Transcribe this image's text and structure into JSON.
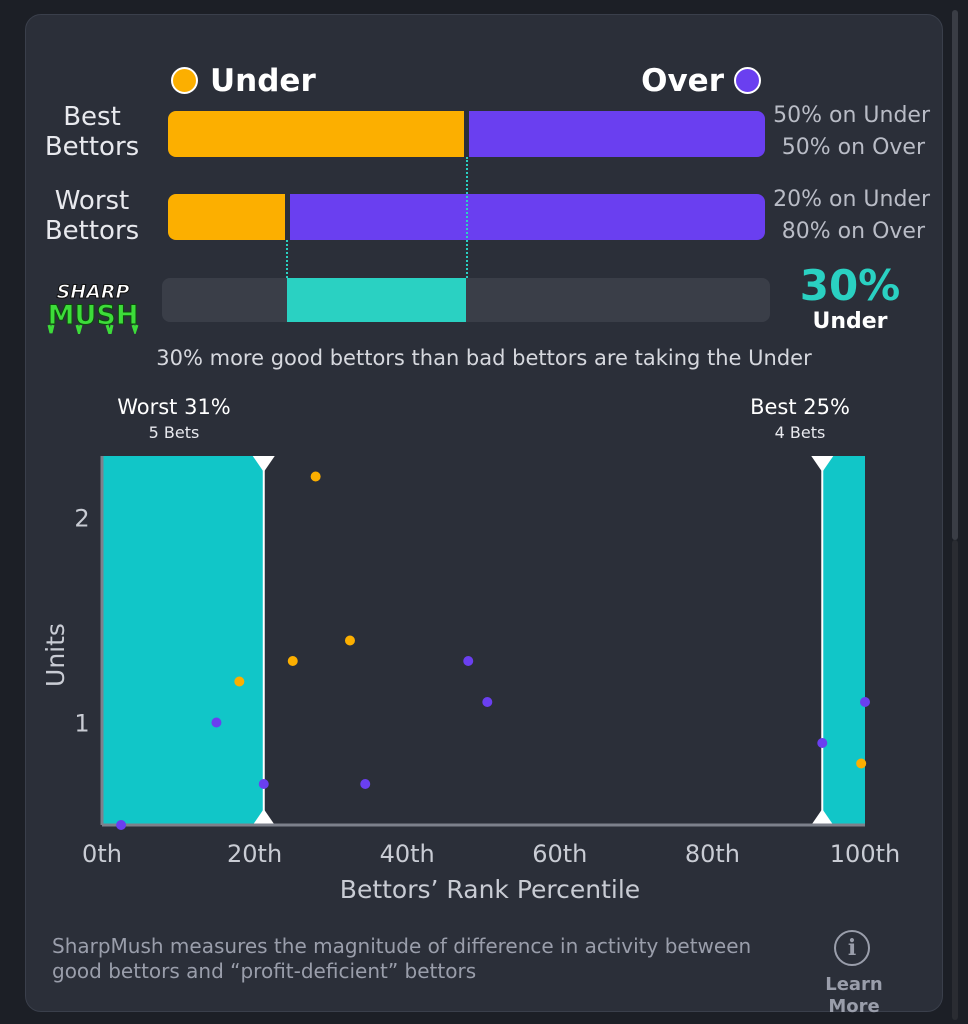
{
  "colors": {
    "under": "#fcaf00",
    "over": "#6a3ff0",
    "accent": "#2ad1c2",
    "zone": "#11c6c8"
  },
  "legend": {
    "under_label": "Under",
    "over_label": "Over"
  },
  "best_bettors": {
    "label_line1": "Best",
    "label_line2": "Bettors",
    "under_pct": 50,
    "under_text": "50% on Under",
    "over_text": "50% on Over"
  },
  "worst_bettors": {
    "label_line1": "Worst",
    "label_line2": "Bettors",
    "under_pct": 20,
    "under_text": "20% on Under",
    "over_text": "80% on Over"
  },
  "sharpmush": {
    "logo_line1": "SHARP",
    "logo_line2": "MUSH",
    "value_text": "30%",
    "side_text": "Under",
    "from_pct": 20,
    "to_pct": 50,
    "summary": "30% more good bettors than bad bettors are taking the Under"
  },
  "chart_data": {
    "type": "scatter",
    "title": "",
    "xlabel": "Bettors’ Rank Percentile",
    "ylabel": "Units",
    "xlim": [
      0,
      100
    ],
    "ylim": [
      0.5,
      2.3
    ],
    "xticks": [
      {
        "value": 0,
        "label": "0th"
      },
      {
        "value": 20,
        "label": "20th"
      },
      {
        "value": 40,
        "label": "40th"
      },
      {
        "value": 60,
        "label": "60th"
      },
      {
        "value": 80,
        "label": "80th"
      },
      {
        "value": 100,
        "label": "100th"
      }
    ],
    "yticks": [
      {
        "value": 1,
        "label": "1"
      },
      {
        "value": 2,
        "label": "2"
      }
    ],
    "worst_zone": {
      "from": 0,
      "to": 21.2,
      "title": "Worst 31%",
      "subtitle": "5 Bets"
    },
    "best_zone": {
      "from": 94.4,
      "to": 100,
      "title": "Best 25%",
      "subtitle": "4 Bets"
    },
    "series": [
      {
        "name": "Under",
        "color": "#fcaf00",
        "points": [
          {
            "x": 18.0,
            "y": 1.2
          },
          {
            "x": 25.0,
            "y": 1.3
          },
          {
            "x": 28.0,
            "y": 2.2
          },
          {
            "x": 32.5,
            "y": 1.4
          },
          {
            "x": 99.5,
            "y": 0.8
          }
        ]
      },
      {
        "name": "Over",
        "color": "#6a3ff0",
        "points": [
          {
            "x": 2.5,
            "y": 0.5
          },
          {
            "x": 15.0,
            "y": 1.0
          },
          {
            "x": 21.2,
            "y": 0.7
          },
          {
            "x": 34.5,
            "y": 0.7
          },
          {
            "x": 48.0,
            "y": 1.3
          },
          {
            "x": 50.5,
            "y": 1.1
          },
          {
            "x": 94.4,
            "y": 0.9
          },
          {
            "x": 100,
            "y": 1.1
          }
        ]
      }
    ]
  },
  "footer": {
    "description": "SharpMush measures the magnitude of difference in activity between good bettors and “profit-deficient” bettors",
    "info_glyph": "i",
    "learn_more": "Learn More"
  }
}
